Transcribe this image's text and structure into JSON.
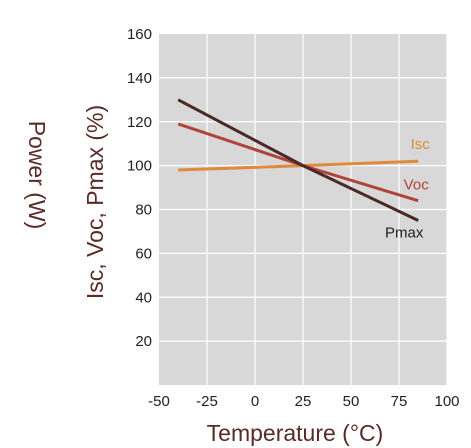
{
  "chart_data": {
    "type": "line",
    "xlabel": "Temperature (°C)",
    "ylabel": "Isc, Voc, Pmax (%)",
    "ylabel2": "Power (W)",
    "xlim": [
      -50,
      100
    ],
    "ylim": [
      0,
      160
    ],
    "x_ticks": [
      -50,
      -25,
      0,
      25,
      50,
      75,
      100
    ],
    "y_ticks": [
      20,
      40,
      60,
      80,
      100,
      120,
      140,
      160
    ],
    "grid": true,
    "background": "#d8d8d8",
    "grid_color": "#ffffff",
    "series": [
      {
        "name": "Isc",
        "color": "#e08a3c",
        "x": [
          -40,
          25,
          85
        ],
        "y": [
          98,
          100,
          102
        ]
      },
      {
        "name": "Voc",
        "color": "#b0433a",
        "x": [
          -40,
          25,
          85
        ],
        "y": [
          119,
          100,
          84
        ]
      },
      {
        "name": "Pmax",
        "color": "#4a2a26",
        "x": [
          -40,
          25,
          85
        ],
        "y": [
          130,
          100,
          75
        ]
      }
    ]
  }
}
